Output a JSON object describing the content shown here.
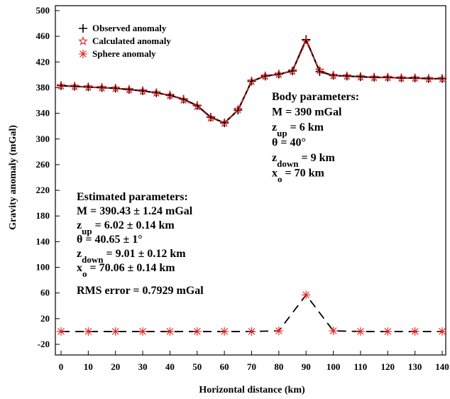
{
  "chart_data": {
    "type": "line",
    "xlabel": "Horizontal distance (km)",
    "ylabel": "Gravity anomaly (mGal)",
    "xlim": [
      0,
      140
    ],
    "xticks": [
      0,
      10,
      20,
      30,
      40,
      50,
      60,
      70,
      80,
      90,
      100,
      110,
      120,
      130,
      140
    ],
    "ylim": [
      -20,
      500
    ],
    "yticks": [
      -20,
      20,
      60,
      100,
      140,
      180,
      220,
      260,
      300,
      340,
      380,
      420,
      460,
      500
    ],
    "legend": "upper left",
    "series": [
      {
        "name": "Observed anomaly",
        "color": "#000000",
        "line": "solid",
        "marker": "plus",
        "x": [
          0,
          5,
          10,
          15,
          20,
          25,
          30,
          35,
          40,
          45,
          50,
          55,
          60,
          65,
          70,
          75,
          80,
          85,
          90,
          95,
          100,
          105,
          110,
          115,
          120,
          125,
          130,
          135,
          140
        ],
        "values": [
          383,
          382,
          381,
          380,
          379,
          377,
          375,
          372,
          368,
          362,
          352,
          334,
          325,
          345,
          390,
          398,
          401,
          406,
          455,
          405,
          399,
          398,
          397,
          396,
          396,
          395,
          395,
          394,
          394
        ]
      },
      {
        "name": "Calculated anomaly",
        "color": "#e02020",
        "line": "dashed",
        "marker": "star",
        "x": [
          0,
          5,
          10,
          15,
          20,
          25,
          30,
          35,
          40,
          45,
          50,
          55,
          60,
          65,
          70,
          75,
          80,
          85,
          90,
          95,
          100,
          105,
          110,
          115,
          120,
          125,
          130,
          135,
          140
        ],
        "values": [
          383,
          382,
          381,
          380,
          379,
          377,
          375,
          372,
          368,
          361,
          351,
          333,
          325,
          346,
          390,
          398,
          401,
          406,
          452,
          407,
          399,
          398,
          397,
          396,
          396,
          395,
          395,
          394,
          394
        ]
      },
      {
        "name": "Sphere anomaly",
        "color": "#e02020",
        "line_color": "#000000",
        "line": "dashed",
        "marker": "asterisk",
        "x": [
          0,
          10,
          20,
          30,
          40,
          50,
          60,
          70,
          80,
          90,
          100,
          110,
          120,
          130,
          140
        ],
        "values": [
          0,
          0,
          0,
          0,
          0,
          0,
          0,
          0,
          1,
          57,
          1,
          0,
          0,
          0,
          0
        ]
      }
    ],
    "body_parameters": {
      "title": "Body parameters:",
      "lines": [
        "M = 390 mGal",
        [
          "z",
          "up",
          " = 6 km"
        ],
        "θ = 40°",
        [
          "z",
          "down",
          " = 9 km"
        ],
        [
          "x",
          "o",
          " = 70 km"
        ]
      ]
    },
    "estimated_parameters": {
      "title": "Estimated parameters:",
      "lines": [
        "M = 390.43 ± 1.24 mGal",
        [
          "z",
          "up",
          " = 6.02 ± 0.14 km"
        ],
        "θ = 40.65 ± 1°",
        [
          "z",
          "down",
          " = 9.01 ± 0.12 km"
        ],
        [
          "x",
          "o",
          " = 70.06 ± 0.14 km"
        ]
      ],
      "rms": "RMS error = 0.7929 mGal"
    }
  }
}
